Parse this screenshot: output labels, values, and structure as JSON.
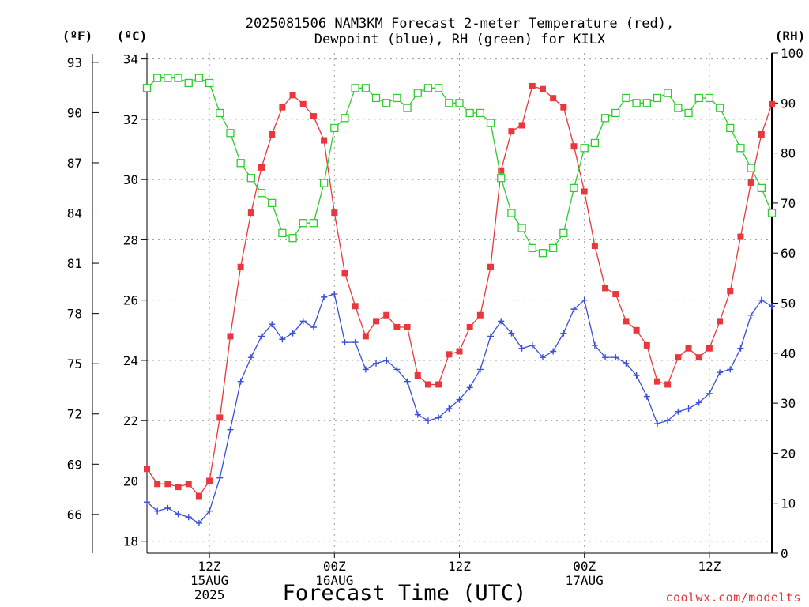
{
  "chart_data": {
    "type": "line",
    "title_lines": [
      "2025081506 NAM3KM Forecast 2-meter Temperature (red),",
      "Dewpoint (blue), RH (green) for KILX"
    ],
    "xlabel": "Forecast Time (UTC)",
    "credit": "coolwx.com/modelts",
    "units": {
      "fahrenheit": "(ºF)",
      "celsius": "(ºC)",
      "rh": "(RH)"
    },
    "grid": true,
    "x_unit": "forecast hour from 2025-08-15 06Z",
    "xlim": [
      0,
      60
    ],
    "x_ticks": [
      {
        "x": 6,
        "lines": [
          "12Z",
          "15AUG",
          "2025"
        ]
      },
      {
        "x": 18,
        "lines": [
          "00Z",
          "16AUG"
        ]
      },
      {
        "x": 30,
        "lines": [
          "12Z"
        ]
      },
      {
        "x": 42,
        "lines": [
          "00Z",
          "17AUG"
        ]
      },
      {
        "x": 54,
        "lines": [
          "12Z"
        ]
      }
    ],
    "left_axis_celsius": {
      "ylim": [
        17.6,
        34.2
      ],
      "ticks": [
        "18",
        "20",
        "22",
        "24",
        "26",
        "28",
        "30",
        "32",
        "34"
      ]
    },
    "left_axis_fahrenheit": {
      "ticks": [
        "66",
        "69",
        "72",
        "75",
        "78",
        "81",
        "84",
        "87",
        "90",
        "93"
      ]
    },
    "right_axis_rh": {
      "ylim": [
        0,
        100
      ],
      "ticks": [
        "0",
        "10",
        "20",
        "30",
        "40",
        "50",
        "60",
        "70",
        "80",
        "90",
        "100"
      ]
    },
    "x": [
      0,
      1,
      2,
      3,
      4,
      5,
      6,
      7,
      8,
      9,
      10,
      11,
      12,
      13,
      14,
      15,
      16,
      17,
      18,
      19,
      20,
      21,
      22,
      23,
      24,
      25,
      26,
      27,
      28,
      29,
      30,
      31,
      32,
      33,
      34,
      35,
      36,
      37,
      38,
      39,
      40,
      41,
      42,
      43,
      44,
      45,
      46,
      47,
      48,
      49,
      50,
      51,
      52,
      53,
      54,
      55,
      56,
      57,
      58,
      59,
      60
    ],
    "series": [
      {
        "name": "2-meter Temperature",
        "axis": "celsius",
        "color": "#e8383d",
        "marker": "filled-square",
        "values": [
          20.4,
          19.9,
          19.9,
          19.8,
          19.9,
          19.5,
          20.0,
          22.1,
          24.8,
          27.1,
          28.9,
          30.4,
          31.5,
          32.4,
          32.8,
          32.5,
          32.1,
          31.3,
          28.9,
          26.9,
          25.8,
          24.8,
          25.3,
          25.5,
          25.1,
          25.1,
          23.5,
          23.2,
          23.2,
          24.2,
          24.3,
          25.1,
          25.5,
          27.1,
          30.3,
          31.6,
          31.8,
          33.1,
          33.0,
          32.7,
          32.4,
          31.1,
          29.6,
          27.8,
          26.4,
          26.2,
          25.3,
          25.0,
          24.5,
          23.3,
          23.2,
          24.1,
          24.4,
          24.1,
          24.4,
          25.3,
          26.3,
          28.1,
          29.9,
          31.5,
          32.5
        ]
      },
      {
        "name": "Dewpoint",
        "axis": "celsius",
        "color": "#3a4fd8",
        "marker": "plus",
        "values": [
          19.3,
          19.0,
          19.1,
          18.9,
          18.8,
          18.6,
          19.0,
          20.1,
          21.7,
          23.3,
          24.1,
          24.8,
          25.2,
          24.7,
          24.9,
          25.3,
          25.1,
          26.1,
          26.2,
          24.6,
          24.6,
          23.7,
          23.9,
          24.0,
          23.7,
          23.3,
          22.2,
          22.0,
          22.1,
          22.4,
          22.7,
          23.1,
          23.7,
          24.8,
          25.3,
          24.9,
          24.4,
          24.5,
          24.1,
          24.3,
          24.9,
          25.7,
          26.0,
          24.5,
          24.1,
          24.1,
          23.9,
          23.5,
          22.8,
          21.9,
          22.0,
          22.3,
          22.4,
          22.6,
          22.9,
          23.6,
          23.7,
          24.4,
          25.5,
          26.0,
          25.8
        ]
      },
      {
        "name": "RH",
        "axis": "rh",
        "color": "#2ecc2e",
        "marker": "open-square",
        "values": [
          93,
          95,
          95,
          95,
          94,
          95,
          94,
          88,
          84,
          78,
          75,
          72,
          70,
          64,
          63,
          66,
          66,
          74,
          85,
          87,
          93,
          93,
          91,
          90,
          91,
          89,
          92,
          93,
          93,
          90,
          90,
          88,
          88,
          86,
          75,
          68,
          65,
          61,
          60,
          61,
          64,
          73,
          81,
          82,
          87,
          88,
          91,
          90,
          90,
          91,
          92,
          89,
          88,
          91,
          91,
          89,
          85,
          81,
          77,
          73,
          68
        ]
      }
    ]
  }
}
